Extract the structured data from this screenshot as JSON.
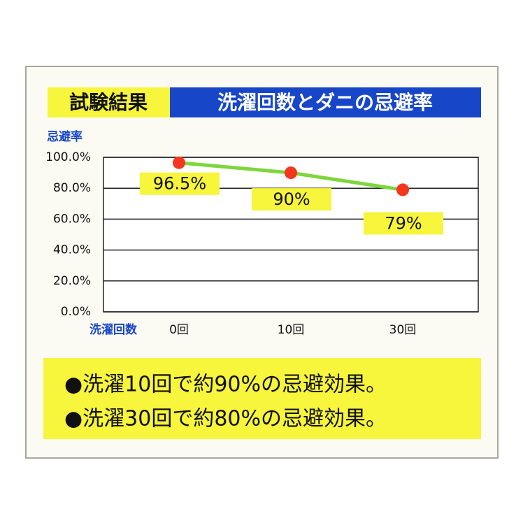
{
  "header_tag": "試験結果",
  "notes": [
    "●洗濯10回で約90%の忌避効果。",
    "●洗濯30回で約80%の忌避効果。"
  ],
  "chart_data": {
    "type": "line",
    "title": "洗濯回数とダニの忌避率",
    "y_label": "忌避率",
    "x_label": "洗濯回数",
    "categories": [
      "0回",
      "10回",
      "30回"
    ],
    "values": [
      96.5,
      90,
      79
    ],
    "value_labels": [
      "96.5%",
      "90%",
      "79%"
    ],
    "color": "#7ed63c",
    "marker_color": "#f4361e",
    "ylim": [
      0,
      100
    ],
    "yticks": [
      {
        "value": 0,
        "label": "0.0%"
      },
      {
        "value": 20,
        "label": "20.0%"
      },
      {
        "value": 40,
        "label": "40.0%"
      },
      {
        "value": 60,
        "label": "60.0%"
      },
      {
        "value": 80,
        "label": "80.0%"
      },
      {
        "value": 100,
        "label": "100.0%"
      }
    ],
    "grid": true
  }
}
